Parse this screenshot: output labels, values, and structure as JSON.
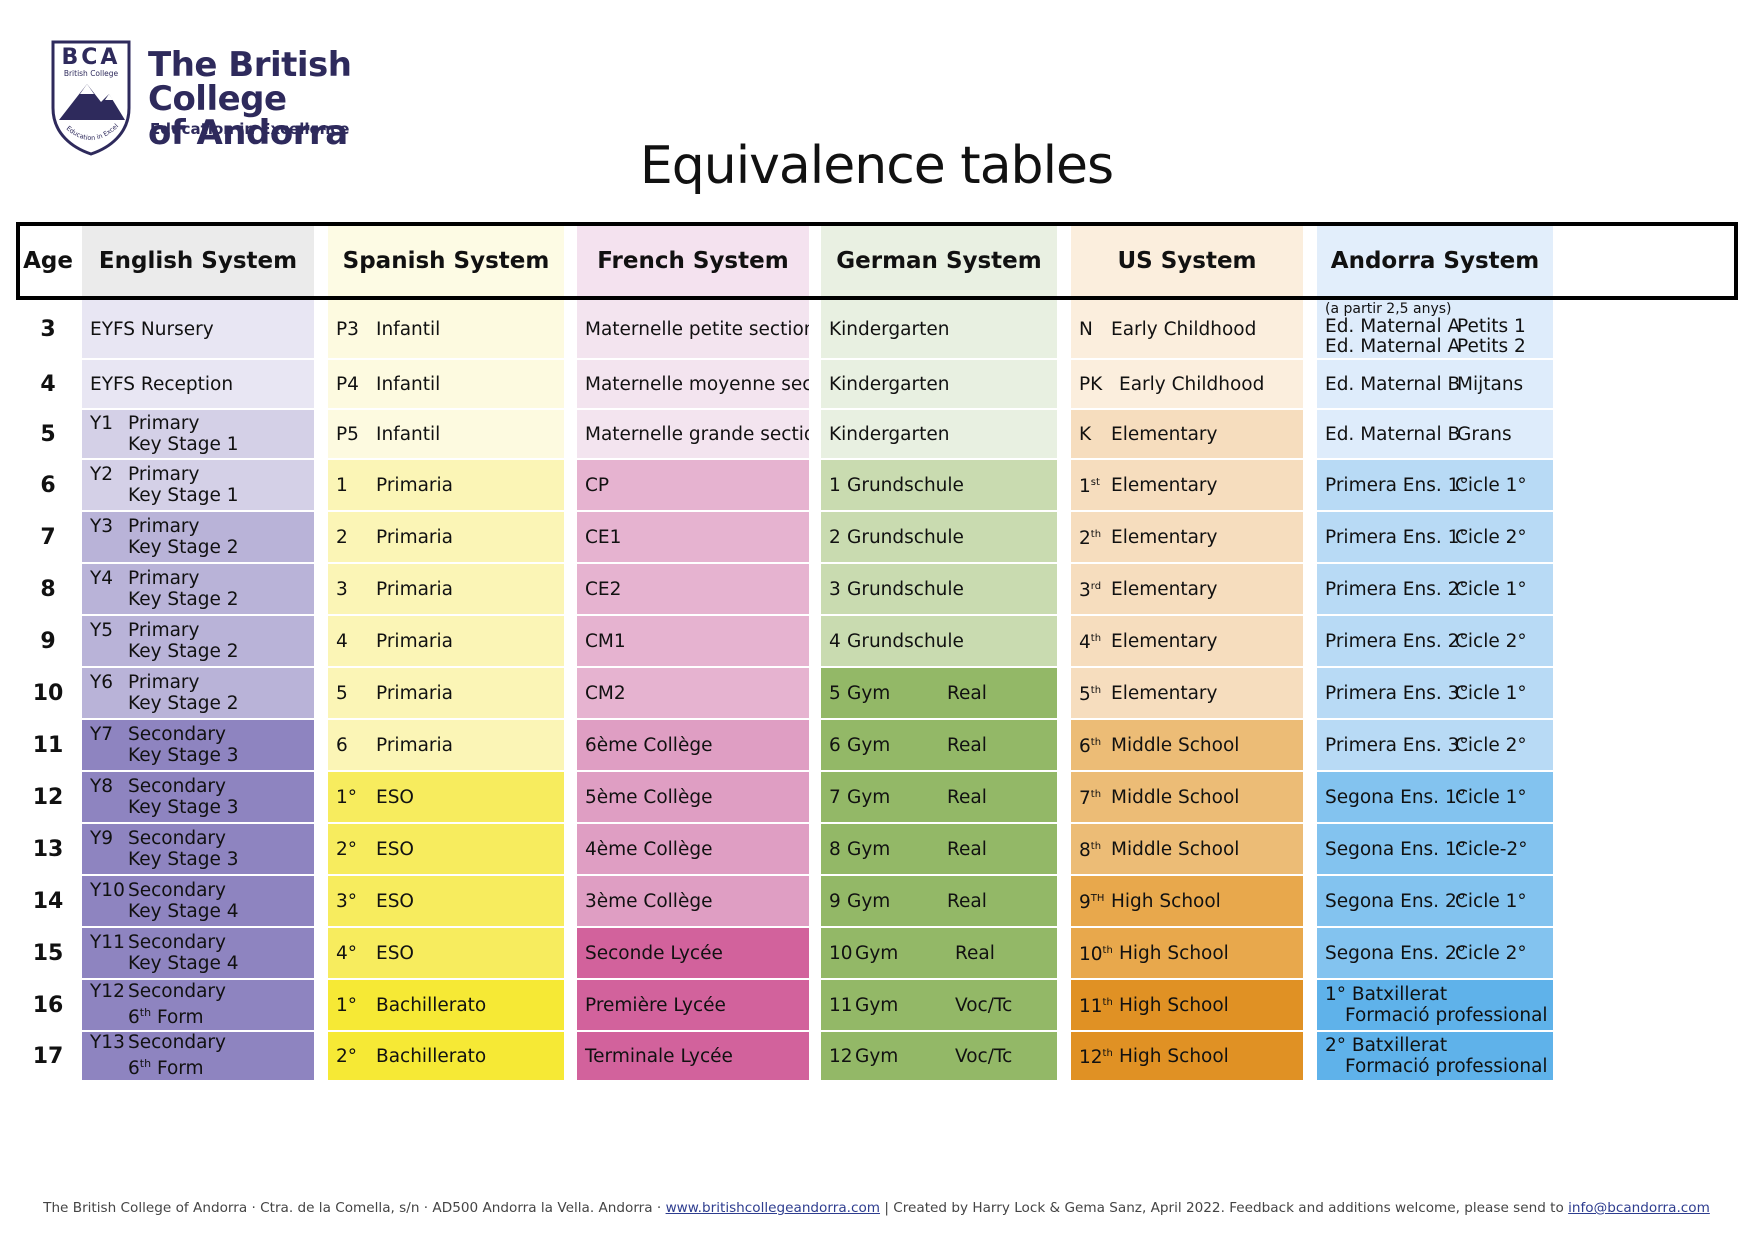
{
  "brand": {
    "monogram": "BCA",
    "shield_small": "British College",
    "shield_arc": "Education in Excellence",
    "name_line1": "The British College",
    "name_line2": "of Andorra",
    "tagline": "Education in Excellence",
    "color": "#2e2a5c"
  },
  "title": "Equivalence tables",
  "headers": [
    "Age",
    "English System",
    "Spanish System",
    "French System",
    "German System",
    "US System",
    "Andorra System"
  ],
  "header_colors": [
    "#ffffff",
    "#ebebeb",
    "#fdfbe4",
    "#f4e2ef",
    "#e9f0e2",
    "#fbeedd",
    "#e2eefb"
  ],
  "rows": [
    {
      "age": "3",
      "english": {
        "code": "EYFS Nursery",
        "l1": "",
        "l2": ""
      },
      "spanish": {
        "code": "P3",
        "name": "Infantil"
      },
      "french": "Maternelle petite section",
      "german": {
        "n": "",
        "a": "Kindergarten",
        "b": ""
      },
      "us": {
        "code": "N",
        "sup": "",
        "name": "Early Childhood"
      },
      "andorra": {
        "note": "(a partir 2,5 anys)",
        "a1": "Ed. Maternal A",
        "b1": "Petits 1",
        "a2": "Ed. Maternal A",
        "b2": "Petits 2"
      },
      "colors": {
        "en": "#e8e6f3",
        "es": "#fdfae0",
        "fr": "#f3e4ef",
        "de": "#e8f0e1",
        "us": "#fbeedd",
        "ad": "#deecfb"
      }
    },
    {
      "age": "4",
      "english": {
        "code": "EYFS Reception",
        "l1": "",
        "l2": ""
      },
      "spanish": {
        "code": "P4",
        "name": "Infantil"
      },
      "french": "Maternelle moyenne section",
      "german": {
        "n": "",
        "a": "Kindergarten",
        "b": ""
      },
      "us": {
        "code": "PK",
        "sup": "",
        "name": "Early Childhood"
      },
      "andorra": {
        "note": "",
        "a1": "Ed. Maternal B",
        "b1": "Mijtans",
        "a2": "",
        "b2": ""
      },
      "colors": {
        "en": "#e8e6f3",
        "es": "#fdfae0",
        "fr": "#f3e4ef",
        "de": "#e8f0e1",
        "us": "#fbeedd",
        "ad": "#deecfb"
      }
    },
    {
      "age": "5",
      "english": {
        "code": "Y1",
        "l1": "Primary",
        "l2": "Key Stage 1"
      },
      "spanish": {
        "code": "P5",
        "name": "Infantil"
      },
      "french": "Maternelle grande section",
      "german": {
        "n": "",
        "a": "Kindergarten",
        "b": ""
      },
      "us": {
        "code": "K",
        "sup": "",
        "name": "Elementary"
      },
      "andorra": {
        "note": "",
        "a1": "Ed. Maternal B",
        "b1": "Grans",
        "a2": "",
        "b2": ""
      },
      "colors": {
        "en": "#d4d0e7",
        "es": "#fdfae0",
        "fr": "#f3e4ef",
        "de": "#e8f0e1",
        "us": "#f6ddbe",
        "ad": "#deecfb"
      }
    },
    {
      "age": "6",
      "english": {
        "code": "Y2",
        "l1": "Primary",
        "l2": "Key Stage 1"
      },
      "spanish": {
        "code": "1",
        "name": "Primaria"
      },
      "french": "CP",
      "german": {
        "n": "1",
        "a": "Grundschule",
        "b": ""
      },
      "us": {
        "code": "1",
        "sup": "st",
        "name": "Elementary"
      },
      "andorra": {
        "note": "",
        "a1": "Primera Ens. 1°",
        "b1": "Cicle 1°",
        "a2": "",
        "b2": ""
      },
      "colors": {
        "en": "#d4d0e7",
        "es": "#fbf5b6",
        "fr": "#e6b3d0",
        "de": "#c9dbb0",
        "us": "#f6ddbe",
        "ad": "#b8daf5"
      }
    },
    {
      "age": "7",
      "english": {
        "code": "Y3",
        "l1": "Primary",
        "l2": "Key Stage 2"
      },
      "spanish": {
        "code": "2",
        "name": "Primaria"
      },
      "french": "CE1",
      "german": {
        "n": "2",
        "a": "Grundschule",
        "b": ""
      },
      "us": {
        "code": "2",
        "sup": "th",
        "name": "Elementary"
      },
      "andorra": {
        "note": "",
        "a1": "Primera Ens. 1°",
        "b1": "Cicle 2°",
        "a2": "",
        "b2": ""
      },
      "colors": {
        "en": "#b9b3d8",
        "es": "#fbf5b6",
        "fr": "#e6b3d0",
        "de": "#c9dbb0",
        "us": "#f6ddbe",
        "ad": "#b8daf5"
      }
    },
    {
      "age": "8",
      "english": {
        "code": "Y4",
        "l1": "Primary",
        "l2": "Key Stage 2"
      },
      "spanish": {
        "code": "3",
        "name": "Primaria"
      },
      "french": "CE2",
      "german": {
        "n": "3",
        "a": "Grundschule",
        "b": ""
      },
      "us": {
        "code": "3",
        "sup": "rd",
        "name": "Elementary"
      },
      "andorra": {
        "note": "",
        "a1": "Primera Ens. 2°",
        "b1": "Cicle 1°",
        "a2": "",
        "b2": ""
      },
      "colors": {
        "en": "#b9b3d8",
        "es": "#fbf5b6",
        "fr": "#e6b3d0",
        "de": "#c9dbb0",
        "us": "#f6ddbe",
        "ad": "#b8daf5"
      }
    },
    {
      "age": "9",
      "english": {
        "code": "Y5",
        "l1": "Primary",
        "l2": "Key Stage 2"
      },
      "spanish": {
        "code": "4",
        "name": "Primaria"
      },
      "french": "CM1",
      "german": {
        "n": "4",
        "a": "Grundschule",
        "b": ""
      },
      "us": {
        "code": "4",
        "sup": "th",
        "name": "Elementary"
      },
      "andorra": {
        "note": "",
        "a1": "Primera Ens. 2°",
        "b1": "Cicle 2°",
        "a2": "",
        "b2": ""
      },
      "colors": {
        "en": "#b9b3d8",
        "es": "#fbf5b6",
        "fr": "#e6b3d0",
        "de": "#c9dbb0",
        "us": "#f6ddbe",
        "ad": "#b8daf5"
      }
    },
    {
      "age": "10",
      "english": {
        "code": "Y6",
        "l1": "Primary",
        "l2": "Key Stage 2"
      },
      "spanish": {
        "code": "5",
        "name": "Primaria"
      },
      "french": "CM2",
      "german": {
        "n": "5",
        "a": "Gym",
        "b": "Real"
      },
      "us": {
        "code": "5",
        "sup": "th",
        "name": "Elementary"
      },
      "andorra": {
        "note": "",
        "a1": "Primera Ens. 3°",
        "b1": "Cicle 1°",
        "a2": "",
        "b2": ""
      },
      "colors": {
        "en": "#b9b3d8",
        "es": "#fbf5b6",
        "fr": "#e6b3d0",
        "de": "#93b867",
        "us": "#f6ddbe",
        "ad": "#b8daf5"
      }
    },
    {
      "age": "11",
      "english": {
        "code": "Y7",
        "l1": "Secondary",
        "l2": "Key Stage 3"
      },
      "spanish": {
        "code": "6",
        "name": "Primaria"
      },
      "french": "6ème Collège",
      "german": {
        "n": "6",
        "a": "Gym",
        "b": "Real"
      },
      "us": {
        "code": "6",
        "sup": "th",
        "name": "Middle School"
      },
      "andorra": {
        "note": "",
        "a1": "Primera Ens. 3°",
        "b1": "Cicle 2°",
        "a2": "",
        "b2": ""
      },
      "colors": {
        "en": "#8e84c0",
        "es": "#fbf5b6",
        "fr": "#df9ec3",
        "de": "#93b867",
        "us": "#ecbc76",
        "ad": "#b8daf5"
      }
    },
    {
      "age": "12",
      "english": {
        "code": "Y8",
        "l1": "Secondary",
        "l2": "Key Stage 3"
      },
      "spanish": {
        "code": "1°",
        "name": "ESO"
      },
      "french": "5ème Collège",
      "german": {
        "n": "7",
        "a": "Gym",
        "b": "Real"
      },
      "us": {
        "code": "7",
        "sup": "th",
        "name": "Middle School"
      },
      "andorra": {
        "note": "",
        "a1": "Segona Ens. 1°",
        "b1": "Cicle 1°",
        "a2": "",
        "b2": ""
      },
      "colors": {
        "en": "#8e84c0",
        "es": "#f7ec5e",
        "fr": "#df9ec3",
        "de": "#93b867",
        "us": "#ecbc76",
        "ad": "#83c3ef"
      }
    },
    {
      "age": "13",
      "english": {
        "code": "Y9",
        "l1": "Secondary",
        "l2": "Key Stage 3"
      },
      "spanish": {
        "code": "2°",
        "name": "ESO"
      },
      "french": "4ème Collège",
      "german": {
        "n": "8",
        "a": "Gym",
        "b": "Real"
      },
      "us": {
        "code": "8",
        "sup": "th",
        "name": "Middle School"
      },
      "andorra": {
        "note": "",
        "a1": "Segona Ens. 1°",
        "b1": "Cicle-2°",
        "a2": "",
        "b2": ""
      },
      "colors": {
        "en": "#8e84c0",
        "es": "#f7ec5e",
        "fr": "#df9ec3",
        "de": "#93b867",
        "us": "#ecbc76",
        "ad": "#83c3ef"
      }
    },
    {
      "age": "14",
      "english": {
        "code": "Y10",
        "l1": "Secondary",
        "l2": "Key Stage 4"
      },
      "spanish": {
        "code": "3°",
        "name": "ESO"
      },
      "french": "3ème Collège",
      "german": {
        "n": "9",
        "a": "Gym",
        "b": "Real"
      },
      "us": {
        "code": "9",
        "sup": "TH",
        "name": "High School"
      },
      "andorra": {
        "note": "",
        "a1": "Segona Ens. 2°",
        "b1": "Cicle 1°",
        "a2": "",
        "b2": ""
      },
      "colors": {
        "en": "#8e84c0",
        "es": "#f7ec5e",
        "fr": "#df9ec3",
        "de": "#93b867",
        "us": "#e8a84c",
        "ad": "#83c3ef"
      }
    },
    {
      "age": "15",
      "english": {
        "code": "Y11",
        "l1": "Secondary",
        "l2": "Key Stage 4"
      },
      "spanish": {
        "code": "4°",
        "name": "ESO"
      },
      "french": "Seconde Lycée",
      "german": {
        "n": "10",
        "a": "Gym",
        "b": "Real"
      },
      "us": {
        "code": "10",
        "sup": "th",
        "name": "High School"
      },
      "andorra": {
        "note": "",
        "a1": "Segona Ens. 2°",
        "b1": "Cicle 2°",
        "a2": "",
        "b2": ""
      },
      "colors": {
        "en": "#8e84c0",
        "es": "#f7ec5e",
        "fr": "#d2629c",
        "de": "#93b867",
        "us": "#e8a84c",
        "ad": "#83c3ef"
      }
    },
    {
      "age": "16",
      "english": {
        "code": "Y12",
        "l1": "Secondary",
        "l2": "6th Form"
      },
      "spanish": {
        "code": "1°",
        "name": "Bachillerato"
      },
      "french": "Première Lycée",
      "german": {
        "n": "11",
        "a": "Gym",
        "b": "Voc/Tc"
      },
      "us": {
        "code": "11",
        "sup": "th",
        "name": "High School"
      },
      "andorra": {
        "note": "",
        "a1": "1° Batxillerat",
        "b1": "",
        "a2": "Formació professional",
        "b2": ""
      },
      "colors": {
        "en": "#8e84c0",
        "es": "#f6e935",
        "fr": "#d2629c",
        "de": "#93b867",
        "us": "#e09124",
        "ad": "#5fb2ea"
      }
    },
    {
      "age": "17",
      "english": {
        "code": "Y13",
        "l1": "Secondary",
        "l2": "6th Form"
      },
      "spanish": {
        "code": "2°",
        "name": "Bachillerato"
      },
      "french": "Terminale Lycée",
      "german": {
        "n": "12",
        "a": "Gym",
        "b": "Voc/Tc"
      },
      "us": {
        "code": "12",
        "sup": "th",
        "name": "High School"
      },
      "andorra": {
        "note": "",
        "a1": "2° Batxillerat",
        "b1": "",
        "a2": "Formació professional",
        "b2": ""
      },
      "colors": {
        "en": "#8e84c0",
        "es": "#f6e935",
        "fr": "#d2629c",
        "de": "#93b867",
        "us": "#e09124",
        "ad": "#5fb2ea"
      }
    }
  ],
  "footer": {
    "address": "The British College of Andorra · Ctra. de la Comella, s/n · AD500 Andorra la Vella. Andorra · ",
    "website": "www.britishcollegeandorra.com",
    "credits": "  |  Created by Harry Lock & Gema Sanz, April 2022. Feedback and additions welcome, please send to ",
    "email": "info@bcandorra.com"
  }
}
